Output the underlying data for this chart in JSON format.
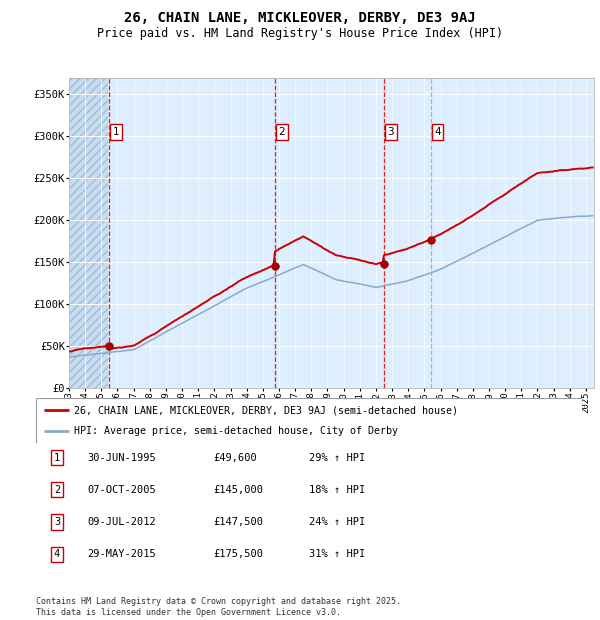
{
  "title": "26, CHAIN LANE, MICKLEOVER, DERBY, DE3 9AJ",
  "subtitle": "Price paid vs. HM Land Registry's House Price Index (HPI)",
  "title_fontsize": 10,
  "subtitle_fontsize": 8.5,
  "ylabel_ticks": [
    "£0",
    "£50K",
    "£100K",
    "£150K",
    "£200K",
    "£250K",
    "£300K",
    "£350K"
  ],
  "ytick_values": [
    0,
    50000,
    100000,
    150000,
    200000,
    250000,
    300000,
    350000
  ],
  "ylim": [
    0,
    370000
  ],
  "xlim_start": 1993.0,
  "xlim_end": 2025.5,
  "plot_bg": "#ddeeff",
  "hatch_end": 1995.42,
  "grid_color": "#ffffff",
  "red_line_color": "#cc0000",
  "blue_line_color": "#88aacc",
  "sale_dates": [
    1995.5,
    2005.77,
    2012.52,
    2015.41
  ],
  "sale_prices": [
    49600,
    145000,
    147500,
    175500
  ],
  "sale_labels": [
    "1",
    "2",
    "3",
    "4"
  ],
  "legend_line1": "26, CHAIN LANE, MICKLEOVER, DERBY, DE3 9AJ (semi-detached house)",
  "legend_line2": "HPI: Average price, semi-detached house, City of Derby",
  "table_entries": [
    {
      "label": "1",
      "date": "30-JUN-1995",
      "price": "£49,600",
      "hpi": "29% ↑ HPI"
    },
    {
      "label": "2",
      "date": "07-OCT-2005",
      "price": "£145,000",
      "hpi": "18% ↑ HPI"
    },
    {
      "label": "3",
      "date": "09-JUL-2012",
      "price": "£147,500",
      "hpi": "24% ↑ HPI"
    },
    {
      "label": "4",
      "date": "29-MAY-2015",
      "price": "£175,500",
      "hpi": "31% ↑ HPI"
    }
  ],
  "footer": "Contains HM Land Registry data © Crown copyright and database right 2025.\nThis data is licensed under the Open Government Licence v3.0.",
  "xtick_years": [
    1993,
    1994,
    1995,
    1996,
    1997,
    1998,
    1999,
    2000,
    2001,
    2002,
    2003,
    2004,
    2005,
    2006,
    2007,
    2008,
    2009,
    2010,
    2011,
    2012,
    2013,
    2014,
    2015,
    2016,
    2017,
    2018,
    2019,
    2020,
    2021,
    2022,
    2023,
    2024,
    2025
  ]
}
